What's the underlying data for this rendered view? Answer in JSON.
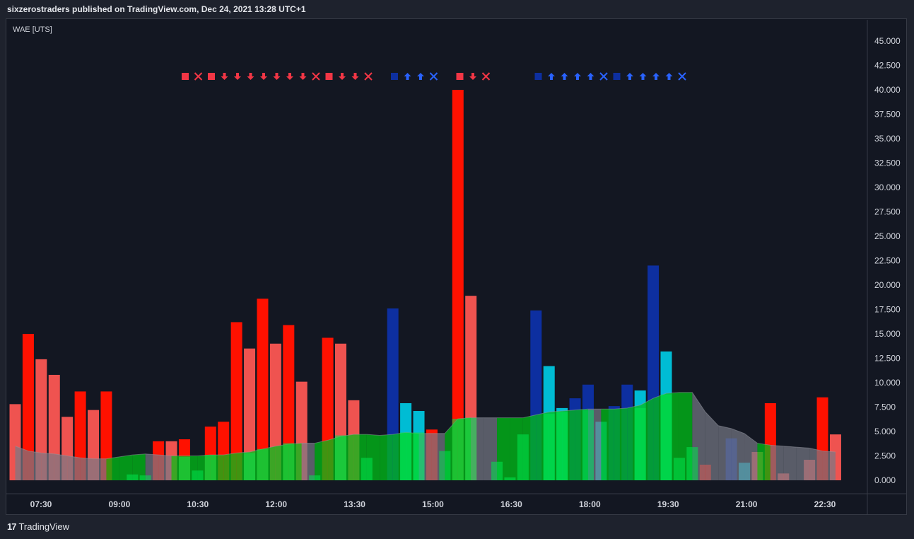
{
  "header": {
    "text": "sixzerostraders published on TradingView.com, Dec 24, 2021 13:28 UTC+1"
  },
  "indicator": {
    "label": "WAE [UTS]"
  },
  "footer": {
    "brand_logo": "17",
    "brand_name": "TradingView"
  },
  "chart_data": {
    "type": "bar",
    "title": "WAE [UTS]",
    "ylim": [
      0,
      46500
    ],
    "y_ticks": [
      "45.000",
      "42.500",
      "40.000",
      "37.500",
      "35.000",
      "32.500",
      "30.000",
      "27.500",
      "25.000",
      "22.500",
      "20.000",
      "17.500",
      "15.000",
      "12.500",
      "10.000",
      "7.500",
      "5.000",
      "2.500",
      "0.000"
    ],
    "x_ticks": [
      "07:30",
      "09:00",
      "10:30",
      "12:00",
      "13:30",
      "15:00",
      "16:30",
      "18:00",
      "19:30",
      "21:00",
      "22:30"
    ],
    "grid": false,
    "colors": {
      "red": "#ff1100",
      "lightred": "#ef5350",
      "blue": "#0d2fa0",
      "cyan": "#00bcd4",
      "green": "#00e54e",
      "darkgreen": "#00b317",
      "area_gray": "#787b86",
      "area_green": "#00c017",
      "up_blue": "#2962ff",
      "down_red": "#f23645"
    },
    "bars_wae": [
      {
        "v": 7800,
        "c": "lightred"
      },
      {
        "v": 15000,
        "c": "red"
      },
      {
        "v": 12400,
        "c": "lightred"
      },
      {
        "v": 10800,
        "c": "lightred"
      },
      {
        "v": 6500,
        "c": "lightred"
      },
      {
        "v": 9100,
        "c": "red"
      },
      {
        "v": 7200,
        "c": "lightred"
      },
      {
        "v": 9100,
        "c": "red"
      },
      {
        "v": 0,
        "c": "red"
      },
      {
        "v": 0,
        "c": "red"
      },
      {
        "v": 0,
        "c": "red"
      },
      {
        "v": 4000,
        "c": "red"
      },
      {
        "v": 4000,
        "c": "lightred"
      },
      {
        "v": 4200,
        "c": "red"
      },
      {
        "v": 0,
        "c": "red"
      },
      {
        "v": 5500,
        "c": "red"
      },
      {
        "v": 6000,
        "c": "red"
      },
      {
        "v": 16200,
        "c": "red"
      },
      {
        "v": 13500,
        "c": "lightred"
      },
      {
        "v": 18600,
        "c": "red"
      },
      {
        "v": 14000,
        "c": "lightred"
      },
      {
        "v": 15900,
        "c": "red"
      },
      {
        "v": 10100,
        "c": "lightred"
      },
      {
        "v": 0,
        "c": "red"
      },
      {
        "v": 14600,
        "c": "red"
      },
      {
        "v": 14000,
        "c": "lightred"
      },
      {
        "v": 8200,
        "c": "lightred"
      },
      {
        "v": 0,
        "c": "red"
      },
      {
        "v": 0,
        "c": "red"
      },
      {
        "v": 17600,
        "c": "blue"
      },
      {
        "v": 7900,
        "c": "cyan"
      },
      {
        "v": 7100,
        "c": "cyan"
      },
      {
        "v": 5200,
        "c": "red"
      },
      {
        "v": 0,
        "c": "red"
      },
      {
        "v": 40000,
        "c": "red"
      },
      {
        "v": 18900,
        "c": "lightred"
      },
      {
        "v": 0,
        "c": "red"
      },
      {
        "v": 0,
        "c": "red"
      },
      {
        "v": 0,
        "c": "red"
      },
      {
        "v": 0,
        "c": "red"
      },
      {
        "v": 17400,
        "c": "blue"
      },
      {
        "v": 11700,
        "c": "cyan"
      },
      {
        "v": 7400,
        "c": "cyan"
      },
      {
        "v": 8400,
        "c": "blue"
      },
      {
        "v": 9800,
        "c": "blue"
      },
      {
        "v": 6000,
        "c": "cyan"
      },
      {
        "v": 7600,
        "c": "blue"
      },
      {
        "v": 9800,
        "c": "blue"
      },
      {
        "v": 9200,
        "c": "cyan"
      },
      {
        "v": 22000,
        "c": "blue"
      },
      {
        "v": 13200,
        "c": "cyan"
      },
      {
        "v": 0,
        "c": "red"
      },
      {
        "v": 0,
        "c": "red"
      },
      {
        "v": 1600,
        "c": "red"
      },
      {
        "v": 0,
        "c": "red"
      },
      {
        "v": 4300,
        "c": "blue"
      },
      {
        "v": 1800,
        "c": "cyan"
      },
      {
        "v": 2900,
        "c": "lightred"
      },
      {
        "v": 7900,
        "c": "red"
      },
      {
        "v": 700,
        "c": "lightred"
      },
      {
        "v": 0,
        "c": "red"
      },
      {
        "v": 2100,
        "c": "lightred"
      },
      {
        "v": 8500,
        "c": "red"
      },
      {
        "v": 4700,
        "c": "lightred"
      }
    ],
    "bars_green": [
      0,
      0,
      0,
      0,
      0,
      0,
      0,
      0,
      0,
      600,
      500,
      0,
      0,
      2400,
      1000,
      2600,
      0,
      0,
      2800,
      3200,
      0,
      3800,
      0,
      500,
      0,
      4600,
      0,
      2300,
      0,
      0,
      4900,
      4900,
      0,
      3000,
      6300,
      6400,
      0,
      1900,
      300,
      4700,
      0,
      6800,
      7000,
      0,
      7200,
      0,
      0,
      0,
      7400,
      0,
      8800,
      2300,
      3400,
      0,
      0,
      0,
      0,
      0,
      0,
      0,
      0,
      0,
      0,
      0
    ],
    "area": [
      {
        "v": 3500,
        "c": "gray"
      },
      {
        "v": 3000,
        "c": "gray"
      },
      {
        "v": 2800,
        "c": "gray"
      },
      {
        "v": 2700,
        "c": "gray"
      },
      {
        "v": 2500,
        "c": "gray"
      },
      {
        "v": 2300,
        "c": "gray"
      },
      {
        "v": 2200,
        "c": "gray"
      },
      {
        "v": 2200,
        "c": "gray"
      },
      {
        "v": 2400,
        "c": "green"
      },
      {
        "v": 2600,
        "c": "green"
      },
      {
        "v": 2700,
        "c": "green"
      },
      {
        "v": 2600,
        "c": "gray"
      },
      {
        "v": 2500,
        "c": "gray"
      },
      {
        "v": 2500,
        "c": "green"
      },
      {
        "v": 2500,
        "c": "green"
      },
      {
        "v": 2600,
        "c": "green"
      },
      {
        "v": 2600,
        "c": "green"
      },
      {
        "v": 2800,
        "c": "green"
      },
      {
        "v": 2900,
        "c": "green"
      },
      {
        "v": 3200,
        "c": "green"
      },
      {
        "v": 3500,
        "c": "green"
      },
      {
        "v": 3700,
        "c": "green"
      },
      {
        "v": 3800,
        "c": "green"
      },
      {
        "v": 3800,
        "c": "gray"
      },
      {
        "v": 4100,
        "c": "green"
      },
      {
        "v": 4500,
        "c": "green"
      },
      {
        "v": 4700,
        "c": "green"
      },
      {
        "v": 4700,
        "c": "green"
      },
      {
        "v": 4600,
        "c": "green"
      },
      {
        "v": 4700,
        "c": "green"
      },
      {
        "v": 4900,
        "c": "green"
      },
      {
        "v": 4800,
        "c": "green"
      },
      {
        "v": 4800,
        "c": "gray"
      },
      {
        "v": 4800,
        "c": "gray"
      },
      {
        "v": 6300,
        "c": "green"
      },
      {
        "v": 6400,
        "c": "green"
      },
      {
        "v": 6400,
        "c": "gray"
      },
      {
        "v": 6400,
        "c": "gray"
      },
      {
        "v": 6400,
        "c": "green"
      },
      {
        "v": 6400,
        "c": "green"
      },
      {
        "v": 6700,
        "c": "green"
      },
      {
        "v": 7000,
        "c": "green"
      },
      {
        "v": 7100,
        "c": "green"
      },
      {
        "v": 7200,
        "c": "green"
      },
      {
        "v": 7300,
        "c": "green"
      },
      {
        "v": 7300,
        "c": "gray"
      },
      {
        "v": 7300,
        "c": "green"
      },
      {
        "v": 7400,
        "c": "green"
      },
      {
        "v": 7700,
        "c": "green"
      },
      {
        "v": 8400,
        "c": "green"
      },
      {
        "v": 8900,
        "c": "green"
      },
      {
        "v": 9000,
        "c": "green"
      },
      {
        "v": 9000,
        "c": "green"
      },
      {
        "v": 7000,
        "c": "gray"
      },
      {
        "v": 5600,
        "c": "gray"
      },
      {
        "v": 5300,
        "c": "gray"
      },
      {
        "v": 4800,
        "c": "gray"
      },
      {
        "v": 3800,
        "c": "gray"
      },
      {
        "v": 3600,
        "c": "green"
      },
      {
        "v": 3500,
        "c": "gray"
      },
      {
        "v": 3400,
        "c": "gray"
      },
      {
        "v": 3300,
        "c": "gray"
      },
      {
        "v": 3000,
        "c": "gray"
      },
      {
        "v": 2900,
        "c": "gray"
      }
    ],
    "signals": [
      {
        "i": 0,
        "s": "square",
        "c": "down_red"
      },
      {
        "i": 1,
        "s": "x",
        "c": "down_red"
      },
      {
        "i": 2,
        "s": "square",
        "c": "down_red"
      },
      {
        "i": 3,
        "s": "down",
        "c": "down_red"
      },
      {
        "i": 4,
        "s": "down",
        "c": "down_red"
      },
      {
        "i": 5,
        "s": "down",
        "c": "down_red"
      },
      {
        "i": 6,
        "s": "down",
        "c": "down_red"
      },
      {
        "i": 7,
        "s": "down",
        "c": "down_red"
      },
      {
        "i": 8,
        "s": "down",
        "c": "down_red"
      },
      {
        "i": 9,
        "s": "down",
        "c": "down_red"
      },
      {
        "i": 10,
        "s": "x",
        "c": "down_red"
      },
      {
        "i": 11,
        "s": "square",
        "c": "down_red"
      },
      {
        "i": 12,
        "s": "down",
        "c": "down_red"
      },
      {
        "i": 13,
        "s": "down",
        "c": "down_red"
      },
      {
        "i": 14,
        "s": "x",
        "c": "down_red"
      },
      {
        "i": 16,
        "s": "square",
        "c": "blue"
      },
      {
        "i": 17,
        "s": "up",
        "c": "up_blue"
      },
      {
        "i": 18,
        "s": "up",
        "c": "up_blue"
      },
      {
        "i": 19,
        "s": "x",
        "c": "up_blue"
      },
      {
        "i": 21,
        "s": "square",
        "c": "down_red"
      },
      {
        "i": 22,
        "s": "down",
        "c": "down_red"
      },
      {
        "i": 23,
        "s": "x",
        "c": "down_red"
      },
      {
        "i": 27,
        "s": "square",
        "c": "blue"
      },
      {
        "i": 28,
        "s": "up",
        "c": "up_blue"
      },
      {
        "i": 29,
        "s": "up",
        "c": "up_blue"
      },
      {
        "i": 30,
        "s": "up",
        "c": "up_blue"
      },
      {
        "i": 31,
        "s": "up",
        "c": "up_blue"
      },
      {
        "i": 32,
        "s": "x",
        "c": "up_blue"
      },
      {
        "i": 33,
        "s": "square",
        "c": "blue"
      },
      {
        "i": 34,
        "s": "up",
        "c": "up_blue"
      },
      {
        "i": 35,
        "s": "up",
        "c": "up_blue"
      },
      {
        "i": 36,
        "s": "up",
        "c": "up_blue"
      },
      {
        "i": 37,
        "s": "up",
        "c": "up_blue"
      },
      {
        "i": 38,
        "s": "x",
        "c": "up_blue"
      }
    ]
  }
}
